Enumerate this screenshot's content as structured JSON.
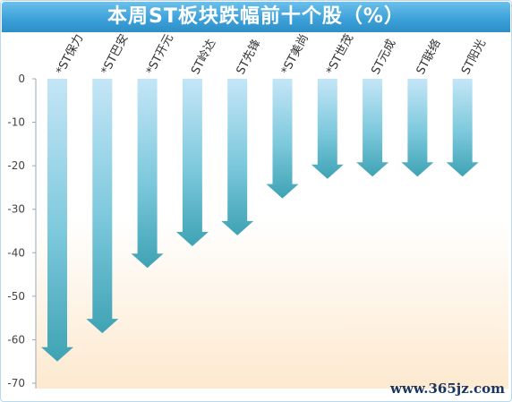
{
  "title": "本周ST板块跌幅前十个股（%）",
  "watermark": "www.365jz.com",
  "colors": {
    "title_bar": "#3a9fd8",
    "arrow_top": "#bfe3f5",
    "arrow_bottom": "#3fa6b6",
    "axis_text": "#444444",
    "background_bottom": "#fde9cf"
  },
  "chart_data": {
    "type": "bar",
    "title": "本周ST板块跌幅前十个股（%）",
    "xlabel": "",
    "ylabel": "",
    "categories": [
      "*ST保力",
      "*ST巴安",
      "*ST开元",
      "ST岭达",
      "ST先锋",
      "*ST美尚",
      "*ST世茂",
      "ST元成",
      "ST联络",
      "ST阳光"
    ],
    "values": [
      -65,
      -58.5,
      -43.5,
      -38.5,
      -36,
      -27.5,
      -23,
      -22.5,
      -22.5,
      -22.5
    ],
    "ylim": [
      -70,
      0
    ],
    "yticks": [
      0,
      -10,
      -20,
      -30,
      -40,
      -50,
      -60,
      -70
    ],
    "grid": false,
    "legend": "none"
  }
}
